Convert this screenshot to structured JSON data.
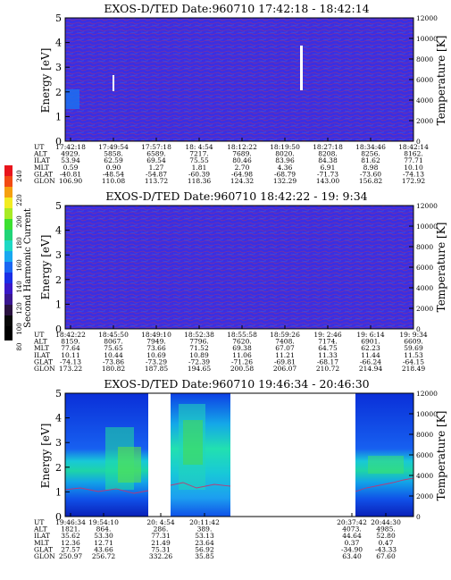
{
  "colorbar": {
    "label": "Second Harmonic Current",
    "ticks": [
      "80",
      "100",
      "120",
      "140",
      "160",
      "180",
      "200",
      "220",
      "240"
    ]
  },
  "panels": [
    {
      "title": "EXOS-D/TED   Date:960710   17:42:18 - 18:42:14",
      "ylabel_left": "Energy [eV]",
      "ylabel_right": "Temperature [K]",
      "yticks_left": [
        "0",
        "1",
        "2",
        "3",
        "4",
        "5"
      ],
      "yticks_right": [
        "0",
        "2000",
        "4000",
        "6000",
        "8000",
        "10000",
        "12000"
      ],
      "row_labels": [
        "UT",
        "ALT",
        "ILAT",
        "MLT",
        "GLAT",
        "GLON"
      ],
      "columns": [
        [
          "17:42:18",
          "4929.",
          "53.94",
          "0.59",
          "-40.81",
          "106.90"
        ],
        [
          "17:49:54",
          "5858.",
          "62.59",
          "0.90",
          "-48.54",
          "110.08"
        ],
        [
          "17:57:18",
          "6589.",
          "69.54",
          "1.27",
          "-54.87",
          "113.72"
        ],
        [
          "18: 4:54",
          "7217.",
          "75.55",
          "1.81",
          "-60.39",
          "118.36"
        ],
        [
          "18:12:22",
          "7689.",
          "80.46",
          "2.70",
          "-64.98",
          "124.32"
        ],
        [
          "18:19:50",
          "8020.",
          "83.96",
          "4.36",
          "-68.79",
          "132.29"
        ],
        [
          "18:27:18",
          "8208.",
          "84.38",
          "6.91",
          "-71.73",
          "143.00"
        ],
        [
          "18:34:46",
          "8256.",
          "81.62",
          "8.98",
          "-73.60",
          "156.82"
        ],
        [
          "18:42:14",
          "8162.",
          "77.71",
          "10.10",
          "-74.13",
          "172.92"
        ]
      ]
    },
    {
      "title": "EXOS-D/TED   Date:960710   18:42:22 - 19: 9:34",
      "ylabel_left": "Energy [eV]",
      "ylabel_right": "Temperature [K]",
      "yticks_left": [
        "0",
        "1",
        "2",
        "3",
        "4",
        "5"
      ],
      "yticks_right": [
        "0",
        "2000",
        "4000",
        "6000",
        "8000",
        "10000",
        "12000"
      ],
      "row_labels": [
        "UT",
        "ALT",
        "MLT",
        "ILAT",
        "GLAT",
        "GLON"
      ],
      "columns": [
        [
          "18:42:22",
          "8159.",
          "77.64",
          "10.11",
          "-74.13",
          "173.22"
        ],
        [
          "18:45:50",
          "8067.",
          "75.65",
          "10.44",
          "-73.86",
          "180.82"
        ],
        [
          "18:49:10",
          "7949.",
          "73.66",
          "10.69",
          "-73.29",
          "187.85"
        ],
        [
          "18:52:38",
          "7796.",
          "71.52",
          "10.89",
          "-72.39",
          "194.65"
        ],
        [
          "18:55:58",
          "7620.",
          "69.38",
          "11.06",
          "-71.26",
          "200.58"
        ],
        [
          "18:59:26",
          "7408.",
          "67.07",
          "11.21",
          "-69.81",
          "206.07"
        ],
        [
          "19: 2:46",
          "7174.",
          "64.75",
          "11.33",
          "-68.17",
          "210.72"
        ],
        [
          "19: 6:14",
          "6901.",
          "62.23",
          "11.44",
          "-66.24",
          "214.94"
        ],
        [
          "19: 9:34",
          "6609.",
          "59.69",
          "11.53",
          "-64.15",
          "218.49"
        ]
      ]
    },
    {
      "title": "EXOS-D/TED   Date:960710   19:46:34 - 20:46:30",
      "ylabel_left": "Energy [eV]",
      "ylabel_right": "Temperature [K]",
      "yticks_left": [
        "0",
        "1",
        "2",
        "3",
        "4",
        "5"
      ],
      "yticks_right": [
        "0",
        "2000",
        "4000",
        "6000",
        "8000",
        "10000",
        "12000"
      ],
      "row_labels": [
        "UT",
        "ALT",
        "ILAT",
        "MLT",
        "GLAT",
        "GLON"
      ],
      "columns": [
        [
          "19:46:34",
          "1821.",
          "35.62",
          "12.36",
          "27.57",
          "250.97"
        ],
        [
          "19:54:10",
          "864.",
          "53.30",
          "12.71",
          "43.66",
          "256.72"
        ],
        [
          "20: 4:54",
          "286.",
          "77.31",
          "21.49",
          "75.31",
          "332.26"
        ],
        [
          "20:11:42",
          "389.",
          "53.13",
          "23.64",
          "56.92",
          "35.85"
        ],
        [
          "20:37:42",
          "4073.",
          "44.64",
          "0.37",
          "-34.90",
          "63.40"
        ],
        [
          "20:44:30",
          "4985.",
          "52.80",
          "0.47",
          "-43.33",
          "67.60"
        ]
      ]
    }
  ],
  "chart_data": [
    {
      "type": "heatmap",
      "title": "EXOS-D/TED   Date:960710   17:42:18 - 18:42:14",
      "xlabel": "UT",
      "ylabel": "Energy [eV]",
      "ylabel_right": "Temperature [K]",
      "ylim": [
        0,
        5
      ],
      "ylim_right": [
        0,
        12000
      ],
      "x_start": "17:42:18",
      "x_end": "18:42:14",
      "background_level": 90,
      "features": [
        {
          "kind": "vertical white streak",
          "ut": "17:49:54",
          "energy_range": [
            2.0,
            2.6
          ]
        },
        {
          "kind": "vertical white streak",
          "ut": "18:19:50",
          "energy_range": [
            2.1,
            3.8
          ]
        }
      ]
    },
    {
      "type": "heatmap",
      "title": "EXOS-D/TED   Date:960710   18:42:22 - 19: 9:34",
      "xlabel": "UT",
      "ylabel": "Energy [eV]",
      "ylabel_right": "Temperature [K]",
      "ylim": [
        0,
        5
      ],
      "ylim_right": [
        0,
        12000
      ],
      "x_start": "18:42:22",
      "x_end": "19: 9:34",
      "background_level": 90
    },
    {
      "type": "heatmap",
      "title": "EXOS-D/TED   Date:960710   19:46:34 - 20:46:30",
      "xlabel": "UT",
      "ylabel": "Energy [eV]",
      "ylabel_right": "Temperature [K]",
      "ylim": [
        0,
        5
      ],
      "ylim_right": [
        0,
        12000
      ],
      "x_start": "19:46:34",
      "x_end": "20:46:30",
      "data_gaps": [
        [
          "19:59:20",
          "20:03:00"
        ],
        [
          "20:11:42",
          "20:35:20"
        ]
      ],
      "features": [
        {
          "kind": "enhanced band",
          "energy_center": 2.0,
          "level": "140-160"
        },
        {
          "kind": "temperature trace",
          "temperature_k_approx": 3500
        }
      ]
    }
  ]
}
